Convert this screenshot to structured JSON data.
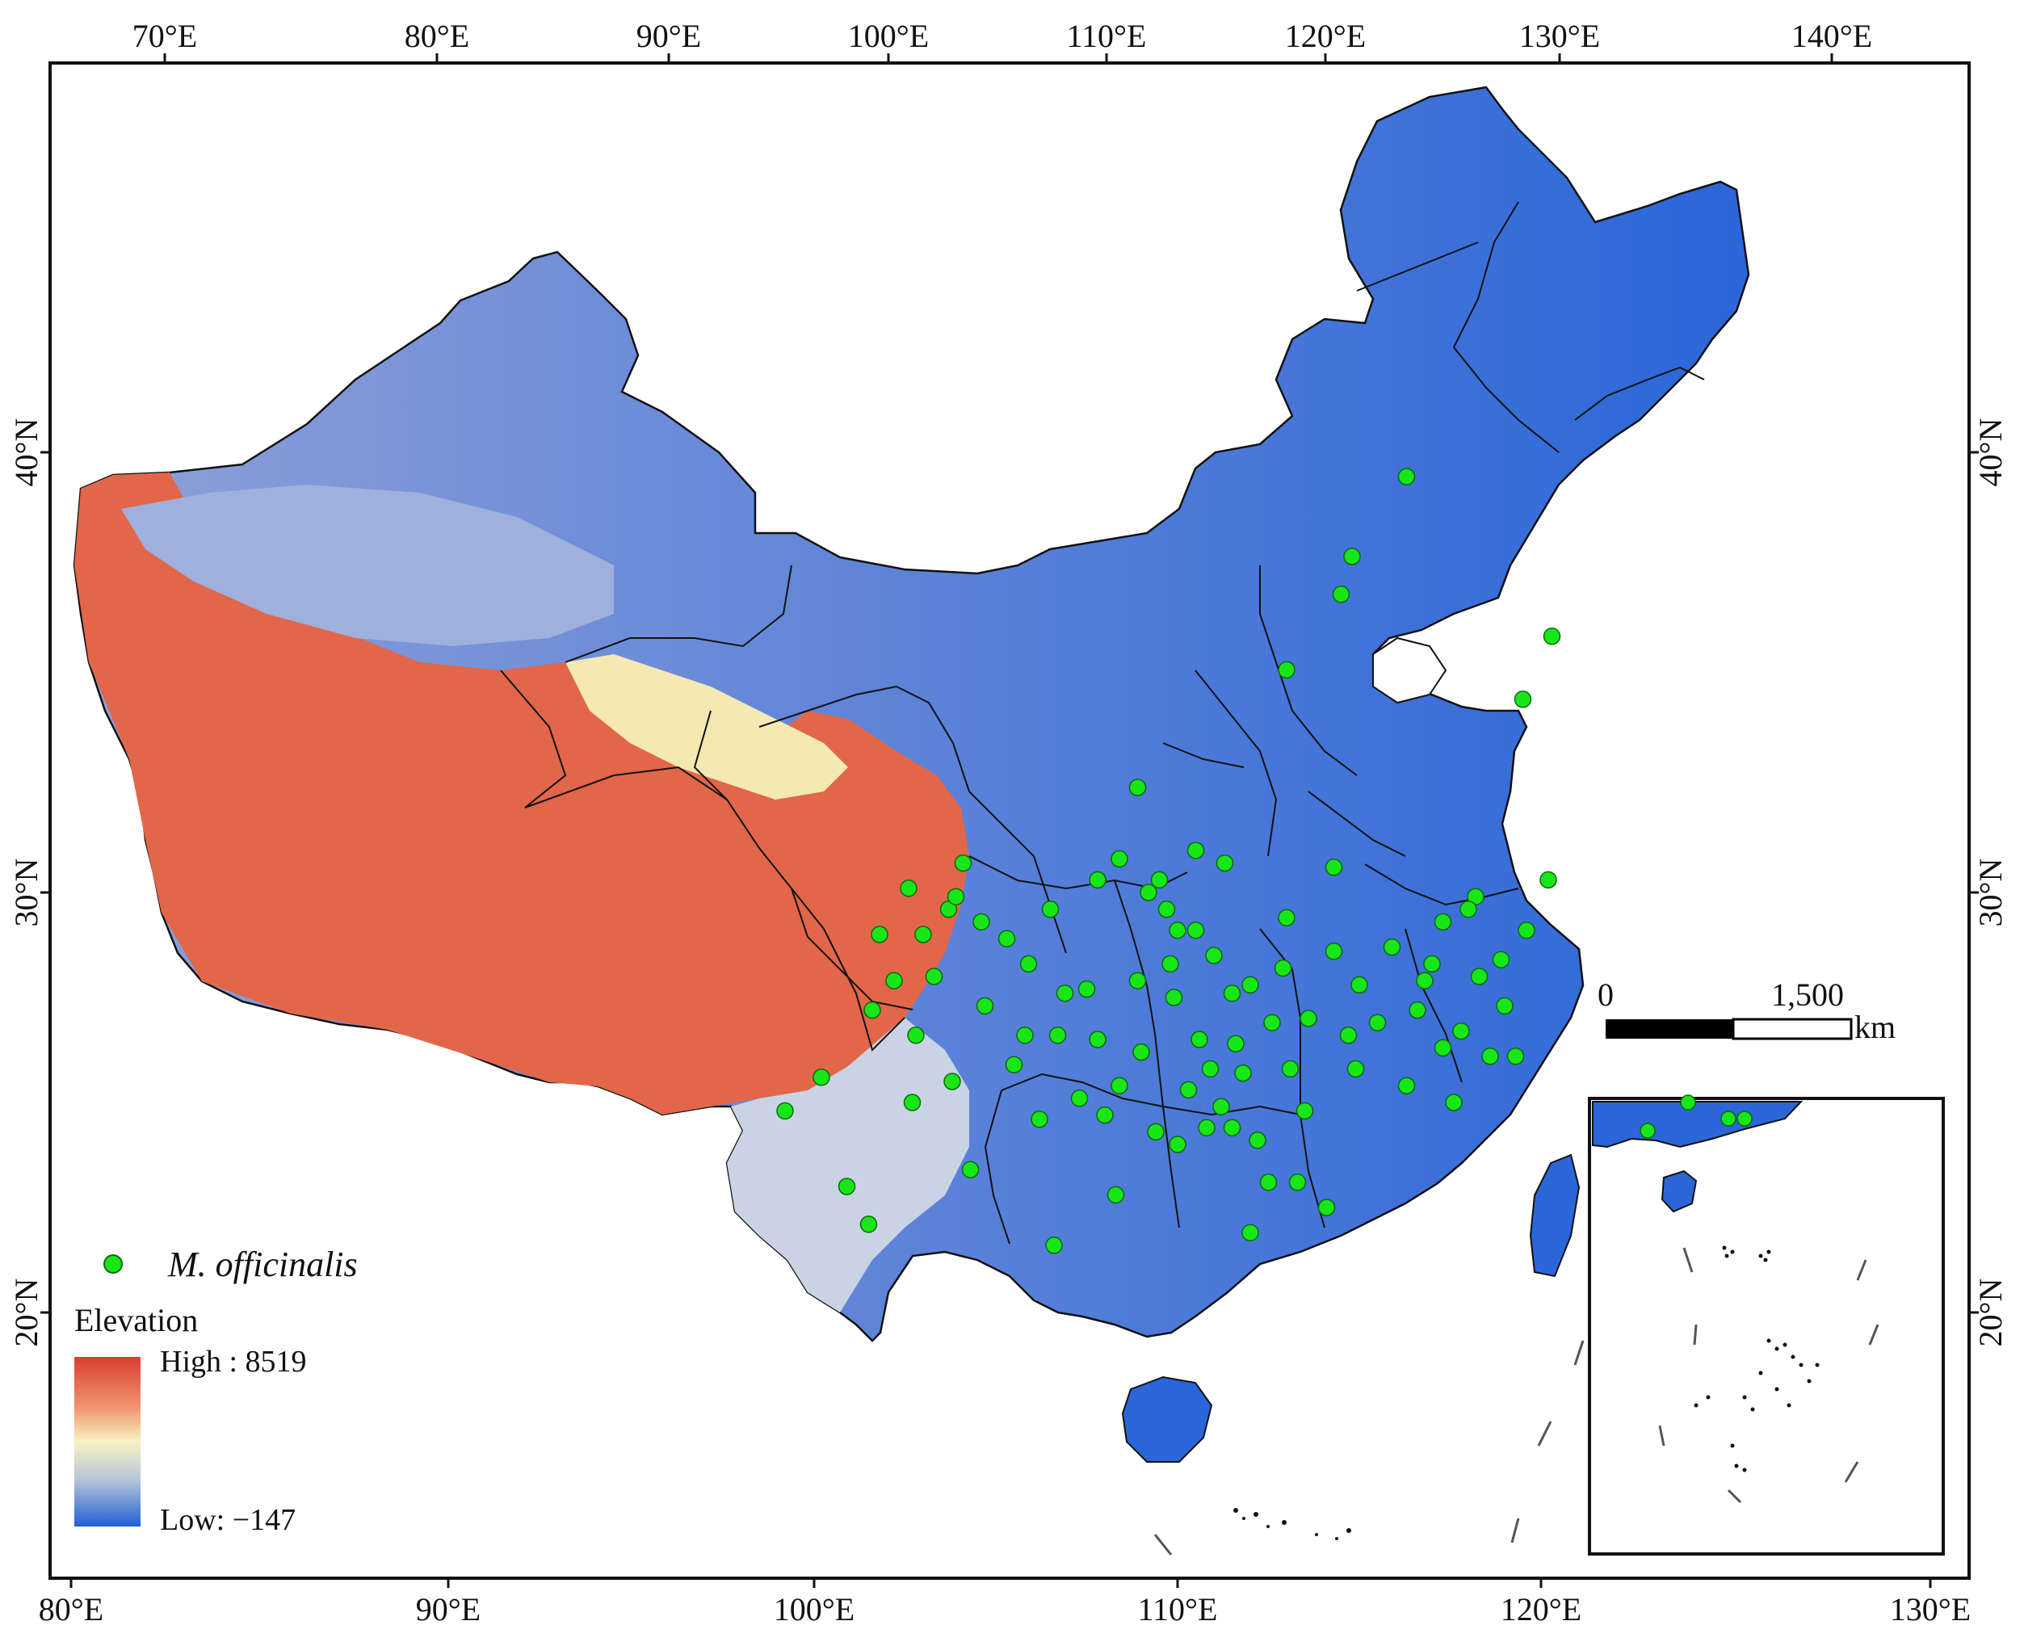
{
  "top_axis_labels": [
    "70°E",
    "80°E",
    "90°E",
    "100°E",
    "110°E",
    "120°E",
    "130°E",
    "140°E"
  ],
  "bottom_axis_labels": [
    "80°E",
    "90°E",
    "100°E",
    "110°E",
    "120°E",
    "130°E"
  ],
  "left_axis_labels": [
    "40°N",
    "30°N",
    "20°N"
  ],
  "right_axis_labels": [
    "40°N",
    "30°N",
    "20°N"
  ],
  "legend": {
    "species": "M. officinalis",
    "elevation_title": "Elevation",
    "high_label": "High : 8519",
    "low_label": "Low: −147"
  },
  "scale_bar": {
    "zero": "0",
    "max": "1,500",
    "unit": "km"
  },
  "colors": {
    "occurrence": "#19e619",
    "ramp_high": "#d9402f",
    "ramp_mid": "#f7f3c2",
    "ramp_low": "#1f5fd6",
    "boundary": "#111111"
  },
  "occurrence_points": [
    {
      "lon": 116.3,
      "lat": 39.9
    },
    {
      "lon": 114.8,
      "lat": 38.0
    },
    {
      "lon": 114.5,
      "lat": 37.1
    },
    {
      "lon": 113.0,
      "lat": 35.3
    },
    {
      "lon": 120.3,
      "lat": 36.1
    },
    {
      "lon": 119.5,
      "lat": 34.6
    },
    {
      "lon": 104.1,
      "lat": 30.7
    },
    {
      "lon": 103.7,
      "lat": 29.6
    },
    {
      "lon": 103.0,
      "lat": 29.0
    },
    {
      "lon": 102.2,
      "lat": 27.9
    },
    {
      "lon": 102.8,
      "lat": 26.6
    },
    {
      "lon": 103.8,
      "lat": 25.5
    },
    {
      "lon": 102.7,
      "lat": 25.0
    },
    {
      "lon": 100.2,
      "lat": 25.6
    },
    {
      "lon": 99.2,
      "lat": 24.8
    },
    {
      "lon": 100.9,
      "lat": 23.0
    },
    {
      "lon": 101.5,
      "lat": 22.1
    },
    {
      "lon": 104.3,
      "lat": 23.4
    },
    {
      "lon": 105.8,
      "lat": 26.6
    },
    {
      "lon": 106.7,
      "lat": 26.6
    },
    {
      "lon": 107.5,
      "lat": 27.7
    },
    {
      "lon": 106.5,
      "lat": 29.6
    },
    {
      "lon": 107.8,
      "lat": 30.3
    },
    {
      "lon": 108.4,
      "lat": 30.8
    },
    {
      "lon": 109.5,
      "lat": 30.3
    },
    {
      "lon": 110.5,
      "lat": 29.1
    },
    {
      "lon": 111.0,
      "lat": 28.5
    },
    {
      "lon": 111.5,
      "lat": 27.6
    },
    {
      "lon": 112.9,
      "lat": 28.2
    },
    {
      "lon": 113.6,
      "lat": 27.0
    },
    {
      "lon": 112.6,
      "lat": 26.9
    },
    {
      "lon": 111.6,
      "lat": 26.4
    },
    {
      "lon": 110.3,
      "lat": 25.3
    },
    {
      "lon": 109.4,
      "lat": 24.3
    },
    {
      "lon": 108.3,
      "lat": 22.8
    },
    {
      "lon": 110.0,
      "lat": 24.0
    },
    {
      "lon": 111.5,
      "lat": 24.4
    },
    {
      "lon": 112.5,
      "lat": 23.1
    },
    {
      "lon": 113.3,
      "lat": 23.1
    },
    {
      "lon": 114.1,
      "lat": 22.5
    },
    {
      "lon": 113.5,
      "lat": 24.8
    },
    {
      "lon": 114.9,
      "lat": 25.8
    },
    {
      "lon": 115.9,
      "lat": 28.7
    },
    {
      "lon": 116.8,
      "lat": 27.9
    },
    {
      "lon": 117.3,
      "lat": 29.3
    },
    {
      "lon": 118.2,
      "lat": 29.9
    },
    {
      "lon": 119.6,
      "lat": 29.1
    },
    {
      "lon": 120.2,
      "lat": 30.3
    },
    {
      "lon": 118.3,
      "lat": 28.0
    },
    {
      "lon": 117.8,
      "lat": 26.7
    },
    {
      "lon": 118.6,
      "lat": 26.1
    },
    {
      "lon": 119.3,
      "lat": 26.1
    },
    {
      "lon": 117.6,
      "lat": 25.0
    },
    {
      "lon": 116.3,
      "lat": 25.4
    },
    {
      "lon": 115.5,
      "lat": 26.9
    },
    {
      "lon": 114.3,
      "lat": 28.6
    },
    {
      "lon": 113.0,
      "lat": 29.4
    },
    {
      "lon": 114.3,
      "lat": 30.6
    },
    {
      "lon": 111.3,
      "lat": 30.7
    },
    {
      "lon": 110.5,
      "lat": 31.0
    },
    {
      "lon": 108.9,
      "lat": 32.5
    },
    {
      "lon": 109.2,
      "lat": 30.0
    },
    {
      "lon": 109.7,
      "lat": 29.6
    },
    {
      "lon": 110.0,
      "lat": 29.1
    },
    {
      "lon": 109.8,
      "lat": 28.3
    },
    {
      "lon": 108.9,
      "lat": 27.9
    },
    {
      "lon": 109.9,
      "lat": 27.5
    },
    {
      "lon": 110.6,
      "lat": 26.5
    },
    {
      "lon": 110.9,
      "lat": 25.8
    },
    {
      "lon": 111.2,
      "lat": 24.9
    },
    {
      "lon": 111.8,
      "lat": 25.7
    },
    {
      "lon": 110.8,
      "lat": 24.4
    },
    {
      "lon": 112.2,
      "lat": 24.1
    },
    {
      "lon": 108.0,
      "lat": 24.7
    },
    {
      "lon": 107.3,
      "lat": 25.1
    },
    {
      "lon": 106.2,
      "lat": 24.6
    },
    {
      "lon": 105.5,
      "lat": 25.9
    },
    {
      "lon": 104.7,
      "lat": 27.3
    },
    {
      "lon": 105.9,
      "lat": 28.3
    },
    {
      "lon": 103.3,
      "lat": 28.0
    },
    {
      "lon": 101.6,
      "lat": 27.2
    },
    {
      "lon": 106.6,
      "lat": 21.6
    },
    {
      "lon": 112.0,
      "lat": 21.9
    },
    {
      "lon": 116.6,
      "lat": 27.2
    },
    {
      "lon": 117.0,
      "lat": 28.3
    },
    {
      "lon": 118.9,
      "lat": 28.4
    },
    {
      "lon": 118.0,
      "lat": 29.6
    },
    {
      "lon": 119.0,
      "lat": 27.3
    },
    {
      "lon": 117.3,
      "lat": 26.3
    },
    {
      "lon": 115.0,
      "lat": 27.8
    },
    {
      "lon": 114.7,
      "lat": 26.6
    },
    {
      "lon": 113.1,
      "lat": 25.8
    },
    {
      "lon": 112.0,
      "lat": 27.8
    },
    {
      "lon": 109.0,
      "lat": 26.2
    },
    {
      "lon": 108.4,
      "lat": 25.4
    },
    {
      "lon": 107.8,
      "lat": 26.5
    },
    {
      "lon": 106.9,
      "lat": 27.6
    },
    {
      "lon": 105.3,
      "lat": 28.9
    },
    {
      "lon": 104.6,
      "lat": 29.3
    },
    {
      "lon": 103.9,
      "lat": 29.9
    },
    {
      "lon": 102.6,
      "lat": 30.1
    },
    {
      "lon": 101.8,
      "lat": 29.0
    }
  ]
}
